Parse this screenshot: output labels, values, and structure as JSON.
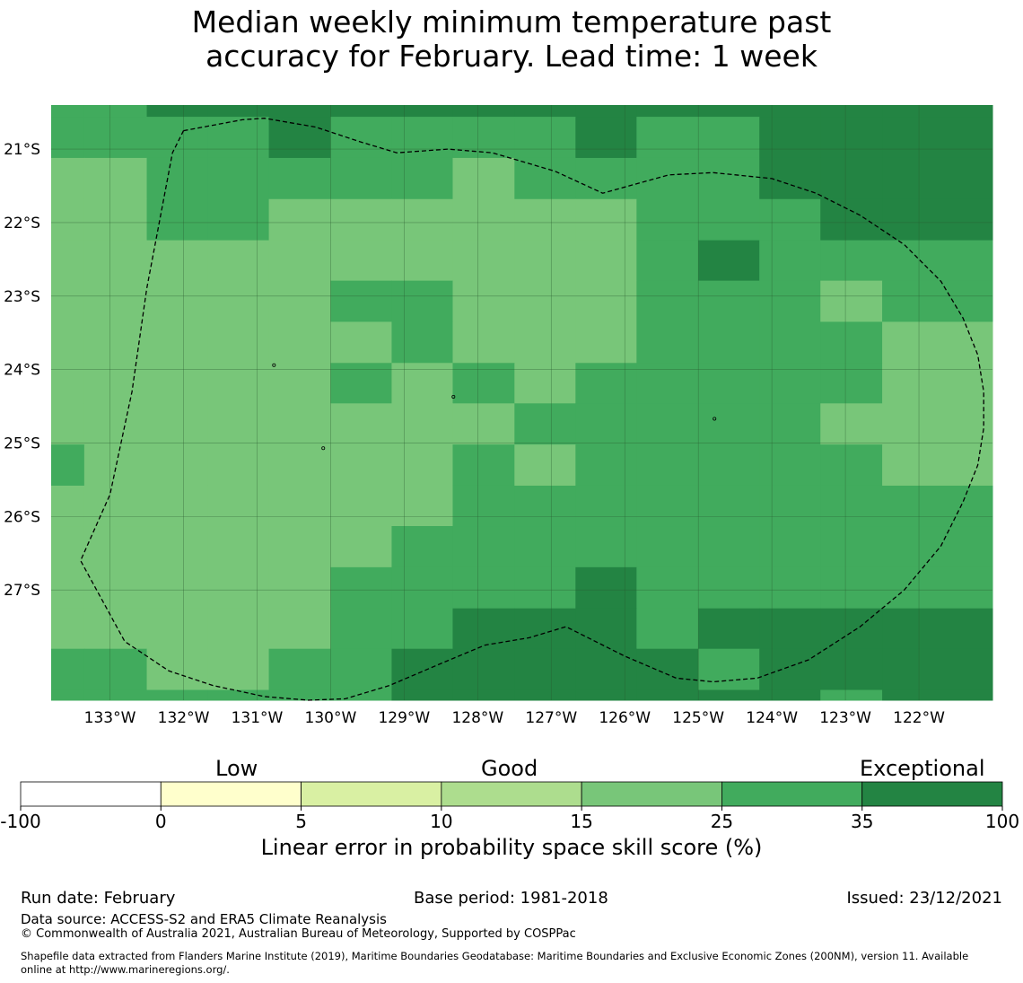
{
  "title": {
    "line1": "Median weekly minimum temperature past",
    "line2": "accuracy for February. Lead time: 1 week"
  },
  "map": {
    "lat_labels": [
      "21°S",
      "22°S",
      "23°S",
      "24°S",
      "25°S",
      "26°S",
      "27°S"
    ],
    "lat_values": [
      -21,
      -22,
      -23,
      -24,
      -25,
      -26,
      -27
    ],
    "lon_labels": [
      "133°W",
      "132°W",
      "131°W",
      "130°W",
      "129°W",
      "128°W",
      "127°W",
      "126°W",
      "125°W",
      "124°W",
      "123°W",
      "122°W"
    ],
    "lon_values": [
      -133,
      -132,
      -131,
      -130,
      -129,
      -128,
      -127,
      -126,
      -125,
      -124,
      -123,
      -122
    ],
    "extent": {
      "lon_min": -133.8,
      "lon_max": -121.0,
      "lat_min": -28.5,
      "lat_max": -20.4
    },
    "category_colors": {
      "1": "#78c679",
      "2": "#41ab5d",
      "3": "#238443"
    },
    "skill_grid_columns_lon": [
      -133.8,
      -133.35,
      -132.5,
      -131.67,
      -130.84,
      -130.0,
      -129.17,
      -128.34,
      -127.5,
      -126.67,
      -125.84,
      -125.0,
      -124.17,
      -123.34,
      -122.5,
      -121.0
    ],
    "skill_grid_rows_lat": [
      -20.4,
      -20.56,
      -21.12,
      -21.68,
      -22.24,
      -22.79,
      -23.35,
      -23.91,
      -24.46,
      -25.02,
      -25.58,
      -26.13,
      -26.69,
      -27.25,
      -27.8,
      -28.36,
      -28.5
    ],
    "skill_grid": [
      [
        2,
        2,
        3,
        3,
        3,
        3,
        3,
        3,
        3,
        3,
        3,
        3,
        3,
        3,
        3
      ],
      [
        2,
        2,
        2,
        2,
        3,
        2,
        2,
        2,
        2,
        3,
        2,
        2,
        3,
        3,
        3
      ],
      [
        1,
        1,
        2,
        2,
        2,
        2,
        2,
        1,
        2,
        2,
        2,
        2,
        3,
        3,
        3
      ],
      [
        1,
        1,
        2,
        2,
        1,
        1,
        1,
        1,
        1,
        1,
        2,
        2,
        2,
        3,
        3
      ],
      [
        1,
        1,
        1,
        1,
        1,
        1,
        1,
        1,
        1,
        1,
        2,
        3,
        2,
        2,
        2
      ],
      [
        1,
        1,
        1,
        1,
        1,
        2,
        2,
        1,
        1,
        1,
        2,
        2,
        2,
        1,
        2
      ],
      [
        1,
        1,
        1,
        1,
        1,
        1,
        2,
        1,
        1,
        1,
        2,
        2,
        2,
        2,
        1
      ],
      [
        1,
        1,
        1,
        1,
        1,
        2,
        1,
        2,
        1,
        2,
        2,
        2,
        2,
        2,
        1
      ],
      [
        1,
        1,
        1,
        1,
        1,
        1,
        1,
        1,
        2,
        2,
        2,
        2,
        2,
        1,
        1
      ],
      [
        2,
        1,
        1,
        1,
        1,
        1,
        1,
        2,
        1,
        2,
        2,
        2,
        2,
        2,
        1
      ],
      [
        1,
        1,
        1,
        1,
        1,
        1,
        1,
        2,
        2,
        2,
        2,
        2,
        2,
        2,
        2
      ],
      [
        1,
        1,
        1,
        1,
        1,
        1,
        2,
        2,
        2,
        2,
        2,
        2,
        2,
        2,
        2
      ],
      [
        1,
        1,
        1,
        1,
        1,
        2,
        2,
        2,
        2,
        3,
        2,
        2,
        2,
        2,
        2
      ],
      [
        1,
        1,
        1,
        1,
        1,
        2,
        2,
        3,
        3,
        3,
        2,
        3,
        3,
        3,
        3
      ],
      [
        2,
        2,
        1,
        1,
        2,
        2,
        3,
        3,
        3,
        3,
        3,
        2,
        3,
        3,
        3
      ],
      [
        2,
        2,
        2,
        2,
        2,
        2,
        3,
        3,
        3,
        3,
        3,
        3,
        3,
        2,
        3
      ]
    ],
    "eez_boundary": [
      [
        -132.0,
        -20.75
      ],
      [
        -131.2,
        -20.6
      ],
      [
        -130.9,
        -20.58
      ],
      [
        -130.2,
        -20.7
      ],
      [
        -129.6,
        -20.9
      ],
      [
        -129.1,
        -21.05
      ],
      [
        -128.4,
        -21.0
      ],
      [
        -127.8,
        -21.05
      ],
      [
        -126.95,
        -21.3
      ],
      [
        -126.3,
        -21.6
      ],
      [
        -125.4,
        -21.35
      ],
      [
        -124.8,
        -21.32
      ],
      [
        -124.0,
        -21.4
      ],
      [
        -123.4,
        -21.6
      ],
      [
        -122.8,
        -21.9
      ],
      [
        -122.2,
        -22.3
      ],
      [
        -121.7,
        -22.8
      ],
      [
        -121.4,
        -23.3
      ],
      [
        -121.2,
        -23.8
      ],
      [
        -121.12,
        -24.3
      ],
      [
        -121.12,
        -24.8
      ],
      [
        -121.2,
        -25.3
      ],
      [
        -121.4,
        -25.8
      ],
      [
        -121.7,
        -26.4
      ],
      [
        -122.2,
        -27.0
      ],
      [
        -122.8,
        -27.5
      ],
      [
        -123.5,
        -27.95
      ],
      [
        -124.2,
        -28.2
      ],
      [
        -124.8,
        -28.25
      ],
      [
        -125.3,
        -28.2
      ],
      [
        -126.0,
        -27.9
      ],
      [
        -126.8,
        -27.5
      ],
      [
        -127.3,
        -27.65
      ],
      [
        -127.9,
        -27.75
      ],
      [
        -128.5,
        -28.0
      ],
      [
        -129.2,
        -28.3
      ],
      [
        -129.8,
        -28.48
      ],
      [
        -130.3,
        -28.5
      ],
      [
        -130.9,
        -28.45
      ],
      [
        -131.6,
        -28.3
      ],
      [
        -132.2,
        -28.1
      ],
      [
        -132.8,
        -27.7
      ],
      [
        -133.4,
        -26.6
      ],
      [
        -133.0,
        -25.7
      ],
      [
        -132.7,
        -24.3
      ],
      [
        -132.5,
        -22.9
      ],
      [
        -132.15,
        -21.05
      ],
      [
        -132.0,
        -20.75
      ]
    ],
    "islands": [
      {
        "lon": -130.77,
        "lat": -23.94
      },
      {
        "lon": -130.1,
        "lat": -25.07
      },
      {
        "lon": -128.33,
        "lat": -24.37
      },
      {
        "lon": -124.78,
        "lat": -24.67
      }
    ]
  },
  "colorbar": {
    "segments": [
      {
        "from": "-100",
        "to": "0",
        "color": "#ffffff"
      },
      {
        "from": "0",
        "to": "5",
        "color": "#ffffcc"
      },
      {
        "from": "5",
        "to": "10",
        "color": "#d9f0a3"
      },
      {
        "from": "10",
        "to": "15",
        "color": "#addd8e"
      },
      {
        "from": "15",
        "to": "25",
        "color": "#78c679"
      },
      {
        "from": "25",
        "to": "35",
        "color": "#41ab5d"
      },
      {
        "from": "35",
        "to": "100",
        "color": "#238443"
      }
    ],
    "ticks": [
      "-100",
      "0",
      "5",
      "10",
      "15",
      "25",
      "35",
      "100"
    ],
    "category_low": "Low",
    "category_good": "Good",
    "category_exceptional": "Exceptional",
    "label": "Linear error in probability space skill score (%)"
  },
  "footer": {
    "run_date": "Run date: February",
    "base_period": "Base period: 1981-2018",
    "issued": "Issued: 23/12/2021",
    "data_source": "Data source: ACCESS-S2 and ERA5 Climate Reanalysis",
    "copyright": "© Commonwealth of Australia 2021, Australian Bureau of Meteorology, Supported by COSPPac",
    "shapefile_line1": "Shapefile data extracted from Flanders Marine Institute (2019), Maritime Boundaries Geodatabase: Maritime Boundaries and Exclusive Economic Zones (200NM), version 11. Available",
    "shapefile_line2": "online at http://www.marineregions.org/."
  }
}
